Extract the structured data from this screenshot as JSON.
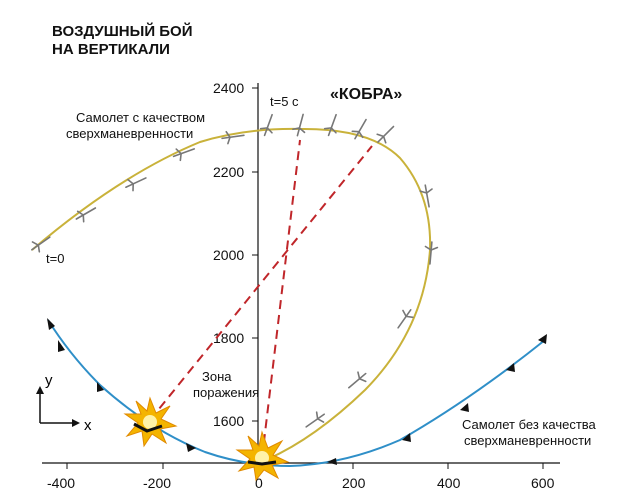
{
  "title": {
    "line1": "ВОЗДУШНЫЙ БОЙ",
    "line2": "НА ВЕРТИКАЛИ"
  },
  "axis": {
    "x_ticks": [
      "-400",
      "-200",
      "0",
      "200",
      "400",
      "600"
    ],
    "y_ticks": [
      "1600",
      "1800",
      "2000",
      "2200",
      "2400"
    ],
    "legend_x": "x",
    "legend_y": "y"
  },
  "labels": {
    "super_plane_line1": "Самолет с качеством",
    "super_plane_line2": "сверхманевренности",
    "t_start": "t=0",
    "t_five": "t=5 с",
    "kobra": "«КОБРА»",
    "zone_line1": "Зона",
    "zone_line2": "поражения",
    "normal_plane_line1": "Самолет без качества",
    "normal_plane_line2": "сверхманевренности"
  },
  "colors": {
    "super_trajectory": "#c9b23a",
    "normal_trajectory": "#2f8fc8",
    "attack_line": "#c0262a",
    "explosion_outer": "#f4b400",
    "explosion_inner": "#fff2a8",
    "axis": "#111111"
  },
  "icons": {
    "aircraft": "jet-silhouette-icon",
    "explosion": "explosion-icon",
    "direction_marker": "triangle-marker-icon"
  }
}
